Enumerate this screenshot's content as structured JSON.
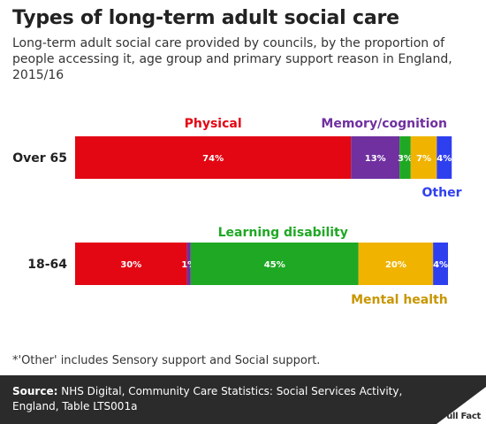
{
  "header": {
    "title": "Types of long-term adult social care",
    "subtitle": "Long-term adult social care provided by councils, by the proportion of people accessing it, age group and primary support reason in England, 2015/16"
  },
  "chart_data": {
    "type": "bar",
    "orientation": "horizontal",
    "stacked": true,
    "normalized": true,
    "categories": [
      "Over 65",
      "18-64"
    ],
    "series": [
      {
        "name": "Physical",
        "color": "#e30613",
        "values": [
          74,
          30
        ],
        "labels": [
          "74%",
          "30%"
        ]
      },
      {
        "name": "Memory/cognition",
        "color": "#7030a0",
        "values": [
          13,
          1
        ],
        "labels": [
          "13%",
          "1%"
        ]
      },
      {
        "name": "Learning disability",
        "color": "#1fa824",
        "values": [
          3,
          45
        ],
        "labels": [
          "3%",
          "45%"
        ]
      },
      {
        "name": "Mental health",
        "color": "#f0b400",
        "values": [
          7,
          20
        ],
        "labels": [
          "7%",
          "20%"
        ]
      },
      {
        "name": "Other",
        "color": "#2e3ff0",
        "values": [
          4,
          4
        ],
        "labels": [
          "4%",
          "4%"
        ]
      }
    ],
    "series_labels": [
      {
        "text": "Physical",
        "color": "#e30613"
      },
      {
        "text": "Memory/cognition",
        "color": "#7030a0"
      },
      {
        "text": "Other",
        "color": "#2e3ff0"
      },
      {
        "text": "Learning disability",
        "color": "#1fa824"
      },
      {
        "text": "Mental health",
        "color": "#c89600"
      }
    ],
    "xlim": [
      0,
      100
    ],
    "grid": false
  },
  "footnote": "*'Other' includes Sensory support and Social support.",
  "footer": {
    "source_label": "Source:",
    "source_text": " NHS Digital, Community Care Statistics: Social Services Activity, England, Table LTS001a",
    "logo_text": "Full Fact"
  }
}
